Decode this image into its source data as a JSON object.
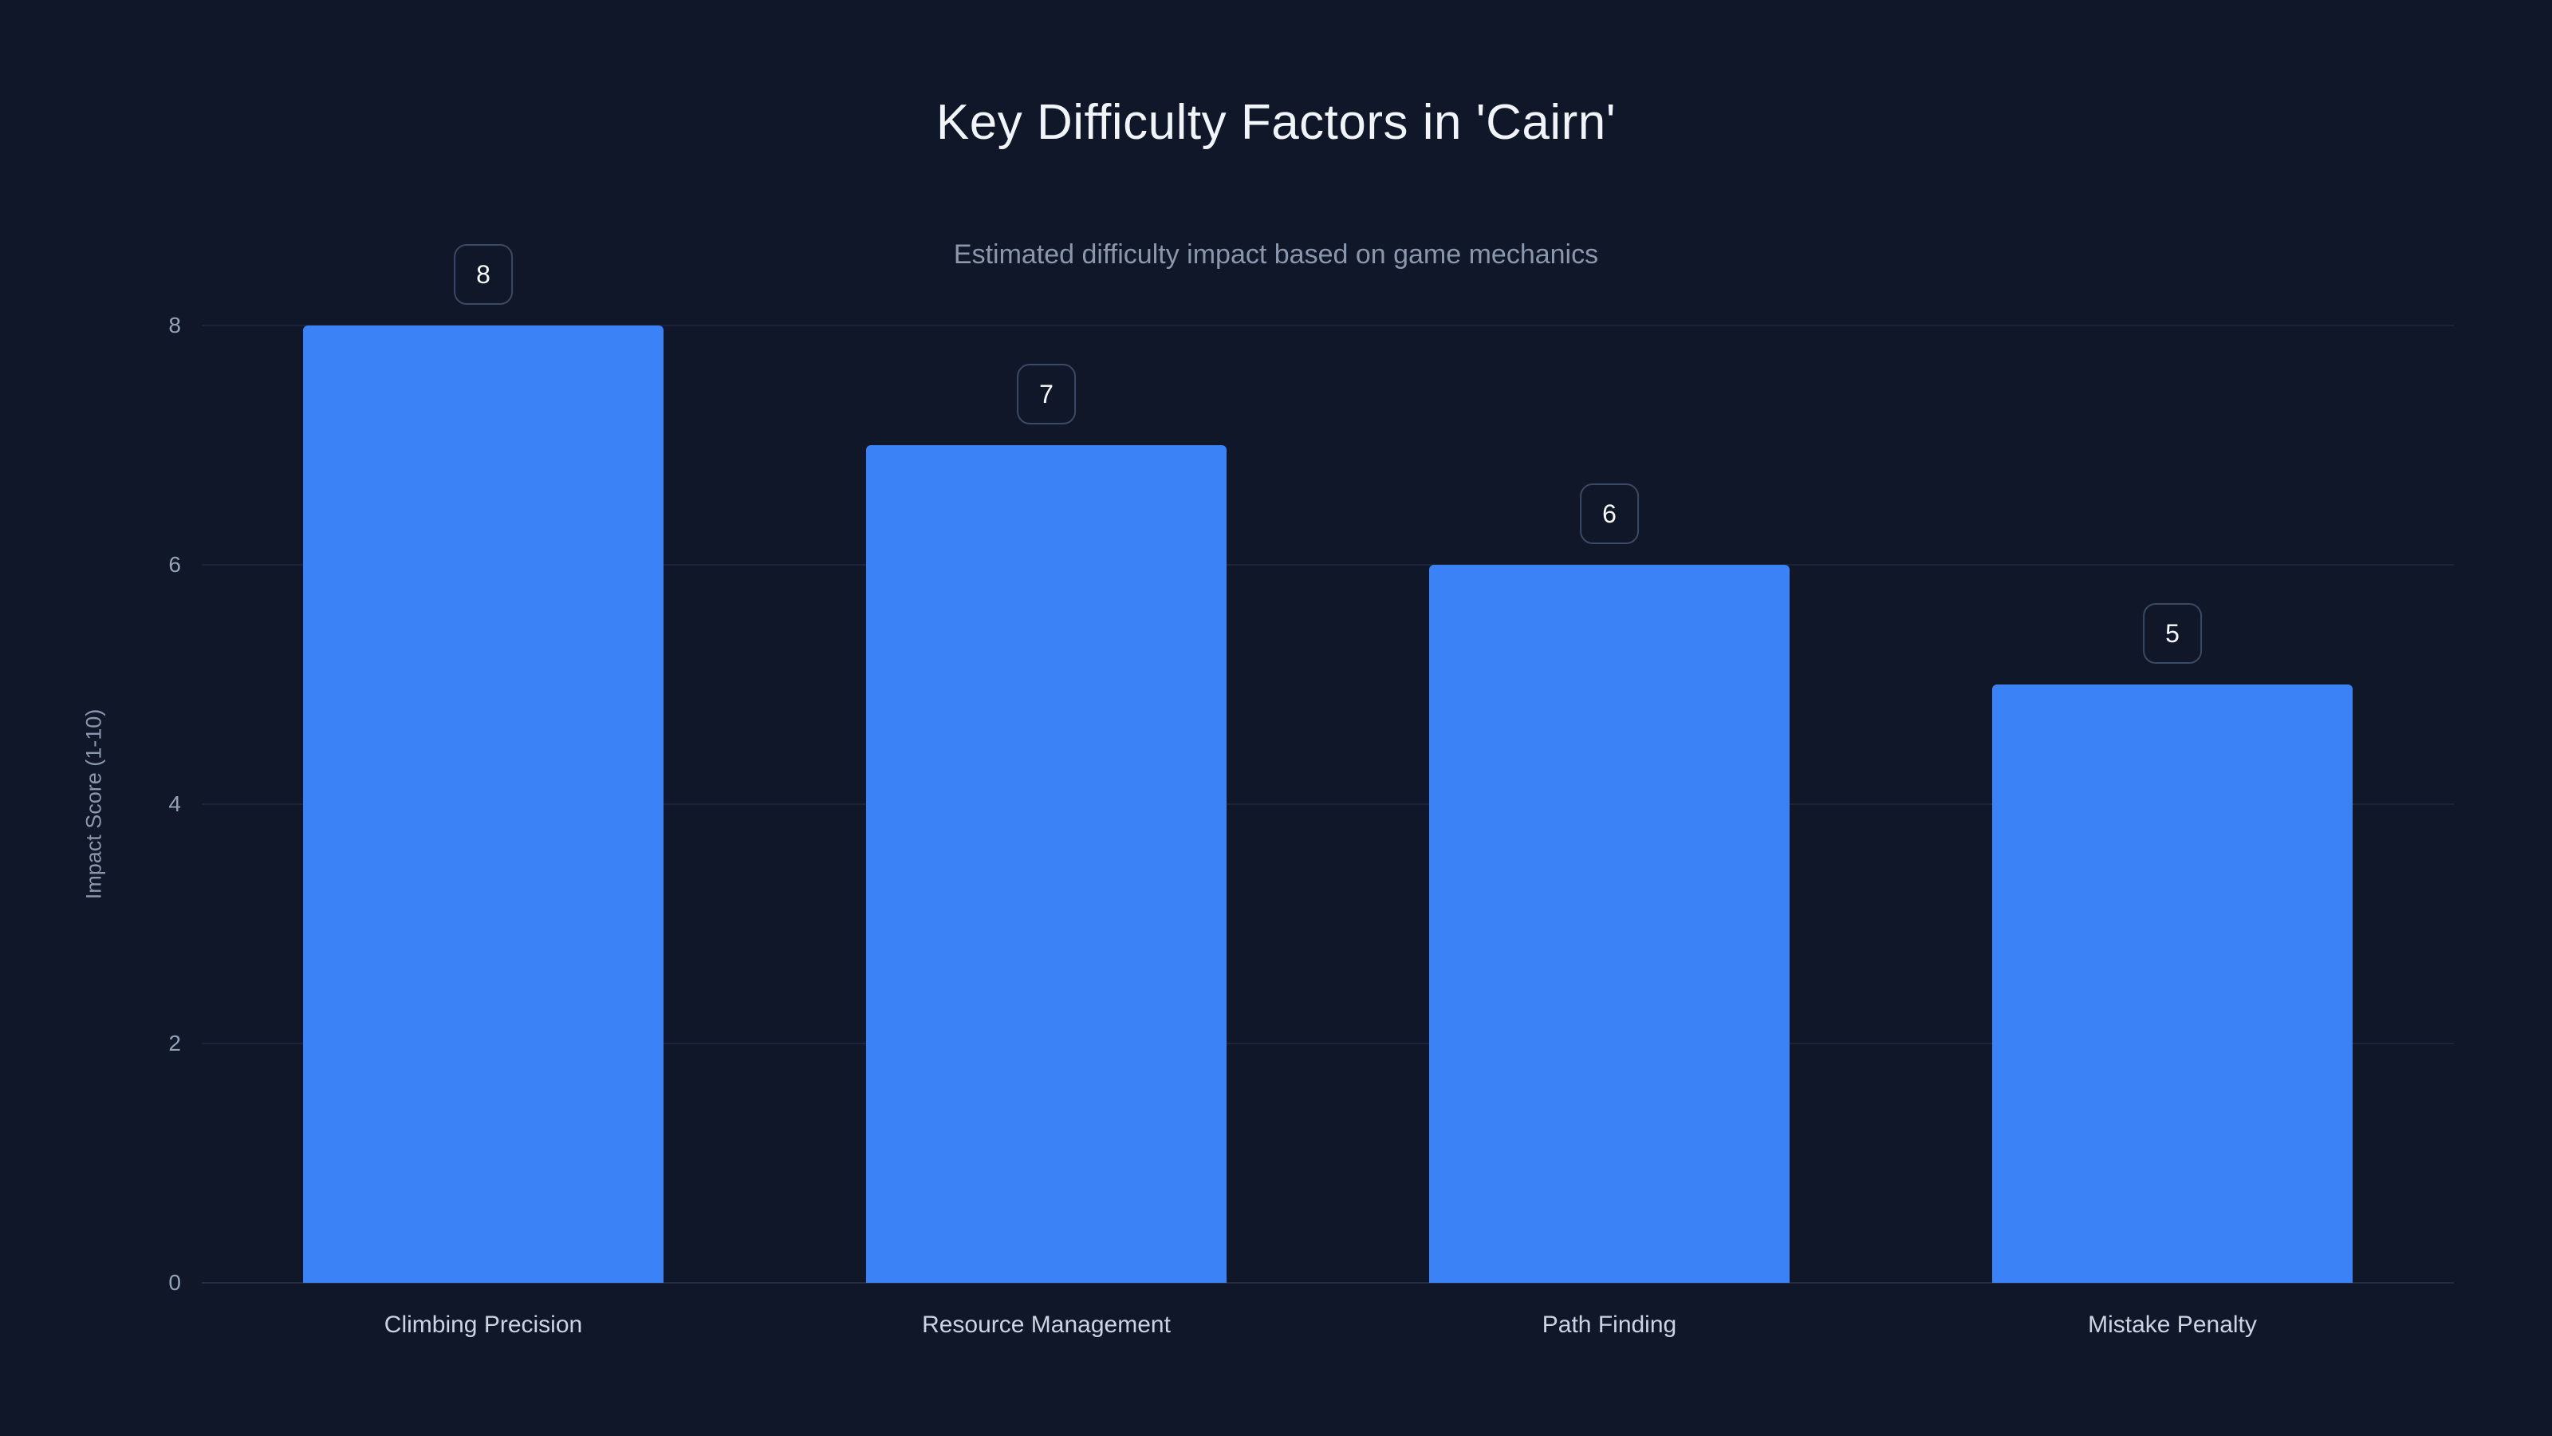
{
  "chart_data": {
    "type": "bar",
    "title": "Key Difficulty Factors in 'Cairn'",
    "subtitle": "Estimated difficulty impact based on game mechanics",
    "categories": [
      "Climbing Precision",
      "Resource Management",
      "Path Finding",
      "Mistake Penalty"
    ],
    "values": [
      8,
      7,
      6,
      5
    ],
    "xlabel": "",
    "ylabel": "Impact Score (1-10)",
    "ylim": [
      0,
      8
    ],
    "yticks": [
      0,
      2,
      4,
      6,
      8
    ],
    "grid": true,
    "legend": false,
    "bar_color": "#3b82f6",
    "background_color": "#0f1729",
    "title_color": "#f1f5f9",
    "subtitle_color": "#8b97ac",
    "axis_text_color": "#94a3b8"
  }
}
